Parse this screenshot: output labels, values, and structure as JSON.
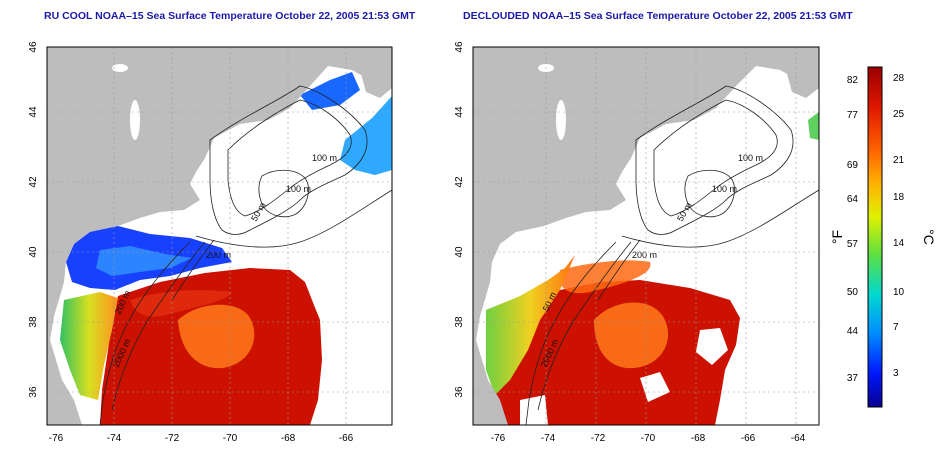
{
  "left_panel": {
    "title": "RU COOL NOAA–15 Sea Surface Temperature October 22, 2005 21:53 GMT",
    "contour_labels": [
      "100 m",
      "100 m",
      "50 m",
      "200 m",
      "200 m",
      "2000 m"
    ]
  },
  "right_panel": {
    "title": "DECLOUDED NOAA–15 Sea Surface Temperature October 22, 2005 21:53 GMT",
    "contour_labels": [
      "100 m",
      "100 m",
      "50 m",
      "200 m",
      "50 m",
      "2000 m"
    ]
  },
  "axes": {
    "lon_ticks": [
      "-76",
      "-74",
      "-72",
      "-70",
      "-68",
      "-66",
      "-64"
    ],
    "lat_ticks": [
      "36",
      "38",
      "40",
      "42",
      "44",
      "46"
    ]
  },
  "colorbar": {
    "fahrenheit_label": "°F",
    "celsius_label": "°C",
    "fahrenheit_ticks": [
      "82",
      "77",
      "69",
      "64",
      "57",
      "50",
      "44",
      "37"
    ],
    "celsius_ticks": [
      "28",
      "25",
      "21",
      "18",
      "14",
      "10",
      "7",
      "3"
    ]
  },
  "colors": {
    "land": "#bdbdbd",
    "cloud": "#ffffff",
    "warm": "#cc1100",
    "mid": "#ff7a1a",
    "cool": "#1840ff",
    "title": "#1a1aa8"
  }
}
